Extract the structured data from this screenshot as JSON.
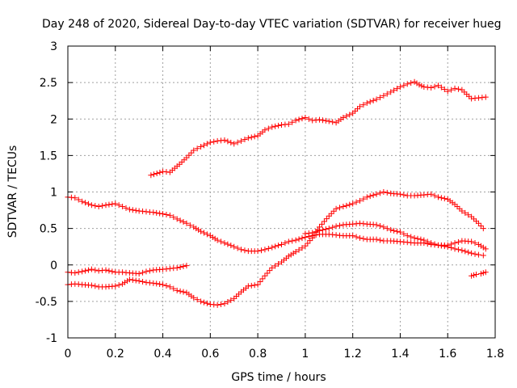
{
  "chart_data": {
    "type": "scatter",
    "title": "Day 248 of 2020, Sidereal Day-to-day VTEC variation (SDTVAR) for receiver hueg",
    "xlabel": "GPS time / hours",
    "ylabel": "SDTVAR / TECUs",
    "xlim": [
      0,
      1.8
    ],
    "ylim": [
      -1,
      3
    ],
    "x_ticks": [
      "0",
      "0.2",
      "0.4",
      "0.6",
      "0.8",
      "1",
      "1.2",
      "1.4",
      "1.6",
      "1.8"
    ],
    "y_ticks": [
      "-1",
      "-0.5",
      "0",
      "0.5",
      "1",
      "1.5",
      "2",
      "2.5",
      "3"
    ],
    "grid": true,
    "marker": "+",
    "color": "#ff0000",
    "series": [
      {
        "name": "series-1",
        "x": [
          0.35,
          0.4,
          0.43,
          0.47,
          0.5,
          0.53,
          0.56,
          0.6,
          0.63,
          0.66,
          0.7,
          0.73,
          0.76,
          0.8,
          0.83,
          0.86,
          0.9,
          0.93,
          0.96,
          1.0,
          1.03,
          1.06,
          1.1,
          1.13,
          1.16,
          1.2,
          1.23,
          1.26,
          1.3,
          1.33,
          1.36,
          1.4,
          1.43,
          1.46,
          1.48,
          1.5,
          1.53,
          1.56,
          1.6,
          1.63,
          1.66,
          1.7,
          1.73,
          1.76
        ],
        "y": [
          1.23,
          1.28,
          1.27,
          1.38,
          1.47,
          1.57,
          1.62,
          1.68,
          1.7,
          1.71,
          1.66,
          1.7,
          1.74,
          1.77,
          1.85,
          1.89,
          1.92,
          1.93,
          1.98,
          2.02,
          1.98,
          1.99,
          1.97,
          1.95,
          2.02,
          2.08,
          2.17,
          2.22,
          2.27,
          2.32,
          2.37,
          2.44,
          2.48,
          2.51,
          2.47,
          2.44,
          2.43,
          2.46,
          2.38,
          2.42,
          2.4,
          2.28,
          2.29,
          2.3
        ]
      },
      {
        "name": "series-2",
        "x": [
          0.0,
          0.03,
          0.06,
          0.1,
          0.13,
          0.16,
          0.2,
          0.23,
          0.26,
          0.3,
          0.33,
          0.36,
          0.4,
          0.43,
          0.46,
          0.5,
          0.53,
          0.56,
          0.6,
          0.63,
          0.66,
          0.7,
          0.73,
          0.76,
          0.8,
          0.83,
          0.86,
          0.9,
          0.93,
          0.96,
          1.0,
          1.03,
          1.06,
          1.1,
          1.13,
          1.16,
          1.2,
          1.23,
          1.26,
          1.3,
          1.33,
          1.36,
          1.4,
          1.43,
          1.46,
          1.5,
          1.53,
          1.56,
          1.6,
          1.63,
          1.66,
          1.7,
          1.73,
          1.75
        ],
        "y": [
          0.93,
          0.92,
          0.87,
          0.82,
          0.8,
          0.82,
          0.84,
          0.8,
          0.76,
          0.74,
          0.73,
          0.72,
          0.7,
          0.68,
          0.63,
          0.57,
          0.52,
          0.46,
          0.4,
          0.34,
          0.3,
          0.25,
          0.21,
          0.19,
          0.19,
          0.21,
          0.24,
          0.28,
          0.32,
          0.34,
          0.38,
          0.4,
          0.42,
          0.42,
          0.41,
          0.4,
          0.4,
          0.37,
          0.35,
          0.35,
          0.33,
          0.33,
          0.32,
          0.31,
          0.3,
          0.3,
          0.28,
          0.27,
          0.25,
          0.22,
          0.2,
          0.16,
          0.14,
          0.13
        ]
      },
      {
        "name": "series-3",
        "x": [
          0.0,
          0.03,
          0.06,
          0.1,
          0.13,
          0.16,
          0.2,
          0.23,
          0.26,
          0.3,
          0.33,
          0.36,
          0.4,
          0.43,
          0.46,
          0.5
        ],
        "y": [
          -0.1,
          -0.11,
          -0.09,
          -0.06,
          -0.08,
          -0.07,
          -0.1,
          -0.1,
          -0.11,
          -0.12,
          -0.09,
          -0.07,
          -0.06,
          -0.05,
          -0.04,
          -0.01
        ]
      },
      {
        "name": "series-4",
        "x": [
          0.0,
          0.03,
          0.06,
          0.1,
          0.13,
          0.16,
          0.2,
          0.23,
          0.26,
          0.3,
          0.33,
          0.36,
          0.4,
          0.43,
          0.46,
          0.5,
          0.53,
          0.56,
          0.6,
          0.63,
          0.66,
          0.7,
          0.73,
          0.76,
          0.8,
          0.83,
          0.86,
          0.9,
          0.93,
          0.96,
          1.0,
          1.03,
          1.06,
          1.1,
          1.13,
          1.16,
          1.2,
          1.23,
          1.26,
          1.3,
          1.33,
          1.36,
          1.4,
          1.43,
          1.46,
          1.5,
          1.53,
          1.56,
          1.6,
          1.63,
          1.66,
          1.7,
          1.73,
          1.75
        ],
        "y": [
          -0.27,
          -0.26,
          -0.27,
          -0.28,
          -0.3,
          -0.3,
          -0.29,
          -0.26,
          -0.2,
          -0.22,
          -0.24,
          -0.25,
          -0.27,
          -0.3,
          -0.35,
          -0.38,
          -0.45,
          -0.5,
          -0.54,
          -0.55,
          -0.53,
          -0.46,
          -0.37,
          -0.29,
          -0.27,
          -0.15,
          -0.04,
          0.04,
          0.12,
          0.18,
          0.26,
          0.37,
          0.52,
          0.67,
          0.77,
          0.8,
          0.84,
          0.88,
          0.93,
          0.97,
          1.0,
          0.98,
          0.97,
          0.95,
          0.95,
          0.96,
          0.97,
          0.93,
          0.9,
          0.83,
          0.74,
          0.66,
          0.57,
          0.5
        ]
      },
      {
        "name": "series-5",
        "x": [
          1.0,
          1.03,
          1.06,
          1.1,
          1.13,
          1.16,
          1.2,
          1.23,
          1.26,
          1.3,
          1.33,
          1.36,
          1.4,
          1.43,
          1.46,
          1.5,
          1.53,
          1.56,
          1.6,
          1.63,
          1.66,
          1.7,
          1.73,
          1.76
        ],
        "y": [
          0.43,
          0.44,
          0.47,
          0.5,
          0.53,
          0.55,
          0.56,
          0.57,
          0.56,
          0.55,
          0.52,
          0.48,
          0.45,
          0.4,
          0.37,
          0.34,
          0.3,
          0.27,
          0.27,
          0.3,
          0.33,
          0.32,
          0.28,
          0.22
        ]
      },
      {
        "name": "series-6",
        "x": [
          1.7,
          1.72,
          1.74,
          1.76
        ],
        "y": [
          -0.15,
          -0.13,
          -0.12,
          -0.1
        ]
      }
    ]
  }
}
